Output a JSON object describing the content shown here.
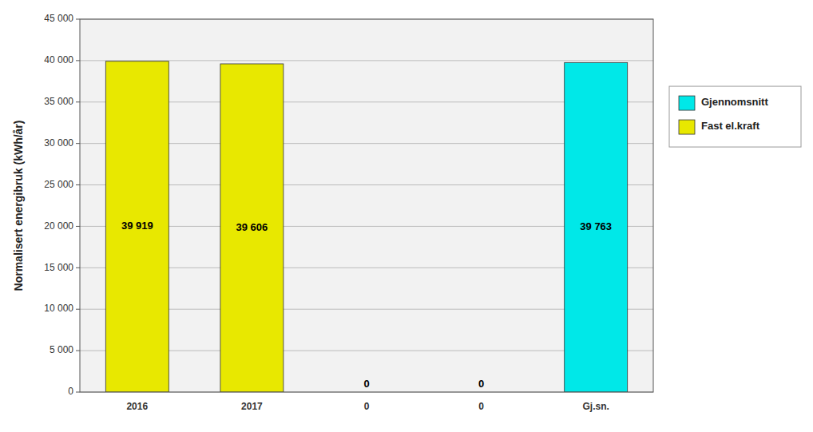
{
  "chart_data": {
    "type": "bar",
    "categories": [
      "2016",
      "2017",
      "0",
      "0",
      "Gj.sn."
    ],
    "series": [
      {
        "name": "Gjennomsnitt",
        "color": "#00e8e8",
        "values": [
          null,
          null,
          null,
          null,
          39763
        ],
        "value_labels": [
          null,
          null,
          null,
          null,
          "39 763"
        ]
      },
      {
        "name": "Fast el.kraft",
        "color": "#e8e800",
        "values": [
          39919,
          39606,
          0,
          0,
          null
        ],
        "value_labels": [
          "39 919",
          "39 606",
          "0",
          "0",
          null
        ]
      }
    ],
    "stacked": true,
    "ylabel": "Normalisert energibruk (kWh/år)",
    "ylim": [
      0,
      45000
    ],
    "yticks": [
      0,
      {
        "value": 5000,
        "label": "5 000"
      },
      {
        "value": 10000,
        "label": "10 000"
      },
      {
        "value": 15000,
        "label": "15 000"
      },
      {
        "value": 20000,
        "label": "20 000"
      },
      {
        "value": 25000,
        "label": "25 000"
      },
      {
        "value": 30000,
        "label": "30 000"
      },
      {
        "value": 35000,
        "label": "35 000"
      },
      {
        "value": 40000,
        "label": "40 000"
      },
      {
        "value": 45000,
        "label": "45 000"
      }
    ],
    "grid": true,
    "data_labels": true,
    "legend": "right"
  }
}
